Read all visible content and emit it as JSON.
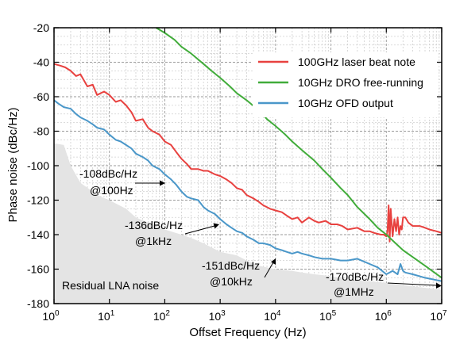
{
  "chart_data": {
    "type": "line",
    "xlabel": "Offset Frequency (Hz)",
    "ylabel": "Phase noise (dBc/Hz)",
    "x_scale": "log",
    "xlim": [
      1,
      10000000
    ],
    "ylim": [
      -180,
      -20
    ],
    "x_ticks": [
      {
        "value": 1,
        "base": "10",
        "exp": "0"
      },
      {
        "value": 10,
        "base": "10",
        "exp": "1"
      },
      {
        "value": 100,
        "base": "10",
        "exp": "2"
      },
      {
        "value": 1000,
        "base": "10",
        "exp": "3"
      },
      {
        "value": 10000,
        "base": "10",
        "exp": "4"
      },
      {
        "value": 100000,
        "base": "10",
        "exp": "5"
      },
      {
        "value": 1000000,
        "base": "10",
        "exp": "6"
      },
      {
        "value": 10000000,
        "base": "10",
        "exp": "7"
      }
    ],
    "y_ticks": [
      -20,
      -40,
      -60,
      -80,
      -100,
      -120,
      -140,
      -160,
      -180
    ],
    "grid": true,
    "legend_position": "top-right",
    "series": [
      {
        "name": "100GHz laser beat note",
        "color": "#e8413f",
        "x": [
          1,
          1.3,
          1.6,
          2,
          2.5,
          3,
          4,
          5,
          6,
          8,
          10,
          13,
          16,
          20,
          25,
          30,
          40,
          50,
          60,
          80,
          100,
          130,
          160,
          200,
          250,
          300,
          400,
          500,
          600,
          800,
          1000,
          1300,
          1600,
          2000,
          2500,
          3000,
          4000,
          5000,
          6000,
          8000,
          10000,
          13000,
          16000,
          20000,
          25000,
          30000,
          40000,
          50000,
          60000,
          80000,
          100000,
          130000,
          160000,
          200000,
          300000,
          400000,
          500000,
          600000,
          800000,
          900000,
          1000000,
          1050000,
          1100000,
          1150000,
          1200000,
          1300000,
          1400000,
          1500000,
          1600000,
          1700000,
          1800000,
          1900000,
          2000000,
          2200000,
          2500000,
          3000000,
          4000000,
          5000000,
          6000000,
          8000000,
          10000000
        ],
        "y": [
          -41,
          -42,
          -43,
          -45,
          -48,
          -47,
          -54,
          -53,
          -59,
          -57,
          -59,
          -63,
          -62,
          -65,
          -69,
          -74,
          -73,
          -78,
          -80,
          -82,
          -86,
          -88,
          -92,
          -96,
          -99,
          -102,
          -102,
          -103,
          -103,
          -105,
          -106,
          -108,
          -110,
          -113,
          -114,
          -117,
          -119,
          -121,
          -123,
          -125,
          -126,
          -127,
          -129,
          -131,
          -130,
          -133,
          -130,
          -132,
          -133,
          -132,
          -134,
          -134,
          -135,
          -137,
          -136,
          -138,
          -138,
          -139,
          -140,
          -140,
          -141,
          -138,
          -123,
          -144,
          -125,
          -141,
          -131,
          -138,
          -130,
          -140,
          -135,
          -137,
          -130,
          -130,
          -133,
          -135,
          -135,
          -136,
          -137,
          -138,
          -139
        ]
      },
      {
        "name": "10GHz DRO free-running",
        "color": "#41ac3a",
        "x": [
          70,
          100,
          150,
          200,
          300,
          500,
          700,
          1000,
          1500,
          2000,
          3000,
          5000,
          7000,
          10000,
          15000,
          20000,
          30000,
          50000,
          70000,
          100000,
          150000,
          200000,
          300000,
          500000,
          700000,
          1000000,
          2000000,
          5000000,
          10000000
        ],
        "y": [
          -20,
          -23,
          -27,
          -31,
          -35,
          -41,
          -45,
          -49,
          -54,
          -58,
          -62,
          -68,
          -73,
          -77,
          -82,
          -86,
          -91,
          -97,
          -102,
          -107,
          -113,
          -117,
          -124,
          -131,
          -136,
          -140,
          -149,
          -158,
          -165
        ]
      },
      {
        "name": "10GHz OFD output",
        "color": "#4a97c9",
        "x": [
          1,
          1.2,
          1.5,
          2,
          2.5,
          3,
          4,
          5,
          6,
          8,
          10,
          13,
          16,
          20,
          25,
          30,
          40,
          50,
          60,
          80,
          100,
          130,
          160,
          200,
          250,
          300,
          400,
          500,
          600,
          800,
          1000,
          1300,
          1600,
          2000,
          2500,
          3000,
          4000,
          5000,
          6000,
          8000,
          10000,
          13000,
          16000,
          20000,
          25000,
          30000,
          40000,
          50000,
          70000,
          100000,
          150000,
          200000,
          300000,
          500000,
          700000,
          1000000,
          1300000,
          1600000,
          1800000,
          2000000,
          2200000,
          3000000,
          5000000,
          10000000
        ],
        "y": [
          -62,
          -64,
          -66,
          -67,
          -70,
          -72,
          -74,
          -76,
          -78,
          -79,
          -82,
          -85,
          -86,
          -88,
          -90,
          -93,
          -95,
          -97,
          -100,
          -102,
          -105,
          -108,
          -111,
          -115,
          -118,
          -119,
          -120,
          -124,
          -126,
          -128,
          -131,
          -134,
          -136,
          -138,
          -139,
          -141,
          -143,
          -145,
          -145,
          -146,
          -148,
          -149,
          -150,
          -151,
          -150,
          -151,
          -152,
          -153,
          -154,
          -154,
          -155,
          -155,
          -154,
          -157,
          -159,
          -163,
          -161,
          -163,
          -157,
          -161,
          -162,
          -163,
          -165,
          -167
        ]
      }
    ],
    "residual_noise": {
      "label": "Residual LNA noise",
      "x": [
        1,
        1.5,
        2,
        3,
        5,
        7,
        10,
        20,
        30,
        50,
        100,
        200,
        300,
        500,
        1000,
        2000,
        3000,
        5000,
        10000,
        20000,
        30000,
        50000,
        100000,
        200000,
        500000,
        1000000,
        3000000,
        10000000
      ],
      "y": [
        -87,
        -88,
        -100,
        -110,
        -115,
        -118,
        -120,
        -125,
        -130,
        -133,
        -137,
        -140,
        -142,
        -145,
        -150,
        -152,
        -155,
        -158,
        -160,
        -161,
        -162,
        -163,
        -164,
        -166,
        -167,
        -168,
        -170,
        -172
      ]
    },
    "annotations": [
      {
        "line1": "-108dBc/Hz",
        "line2": "@100Hz"
      },
      {
        "line1": "-136dBc/Hz",
        "line2": "@1kHz"
      },
      {
        "line1": "-151dBc/Hz",
        "line2": "@10kHz"
      },
      {
        "line1": "-170dBc/Hz",
        "line2": "@1MHz"
      }
    ]
  }
}
